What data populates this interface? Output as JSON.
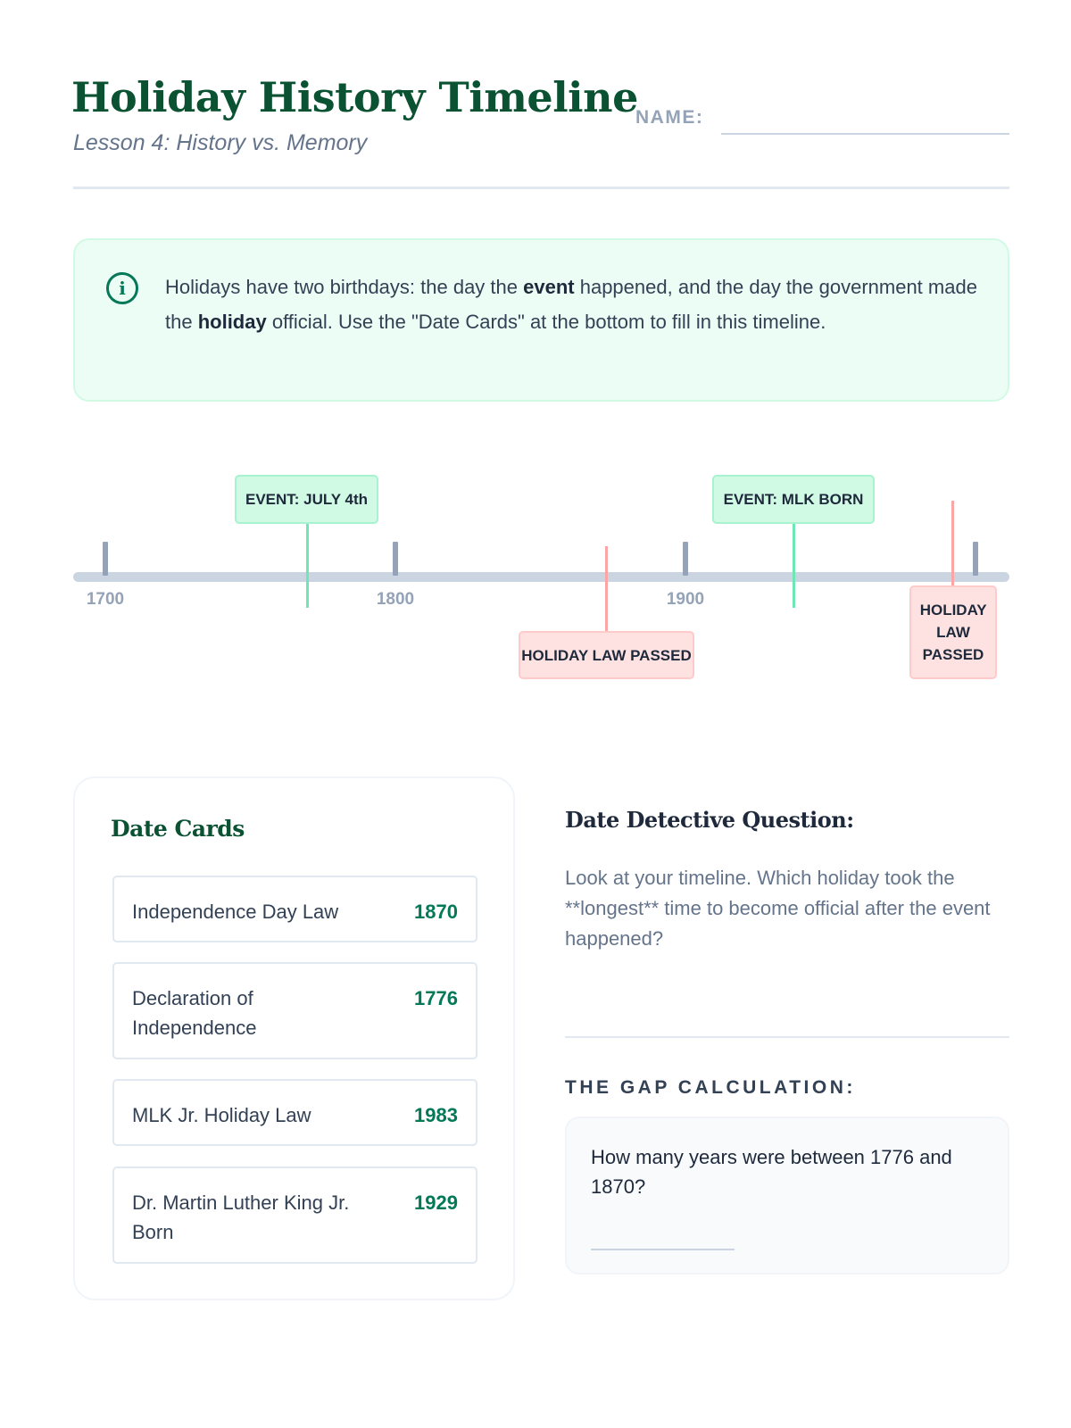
{
  "header": {
    "title": "Holiday History Timeline",
    "subtitle": "Lesson 4: History vs. Memory",
    "name_label": "NAME:"
  },
  "info": {
    "icon": "info-circle-icon",
    "text_1": "Holidays have two birthdays: the day the ",
    "bold_1": "event",
    "text_2": " happened, and the day the government made the ",
    "bold_2": "holiday",
    "text_3": " official. Use the \"Date Cards\" at the bottom to fill in this timeline."
  },
  "timeline": {
    "ticks": [
      "1700",
      "1800",
      "1900"
    ],
    "markers": [
      {
        "label": "EVENT: JULY 4th",
        "kind": "event",
        "color": "#d1fae5"
      },
      {
        "label": "EVENT: MLK BORN",
        "kind": "event",
        "color": "#d1fae5"
      },
      {
        "label": "HOLIDAY LAW PASSED",
        "kind": "law",
        "color": "#fee2e2"
      },
      {
        "label": "HOLIDAY LAW PASSED",
        "kind": "law",
        "color": "#fee2e2"
      }
    ]
  },
  "date_cards": {
    "title": "Date Cards",
    "cards": [
      {
        "label": "Independence Day Law",
        "year": "1870"
      },
      {
        "label": "Declaration of Independence",
        "year": "1776"
      },
      {
        "label": "MLK Jr. Holiday Law",
        "year": "1983"
      },
      {
        "label": "Dr. Martin Luther King Jr. Born",
        "year": "1929"
      }
    ]
  },
  "question": {
    "title": "Date Detective Question:",
    "text": "Look at your timeline. Which holiday took the **longest** time to become official after the event happened?"
  },
  "gap": {
    "label": "THE GAP CALCULATION:",
    "question": "How many years were between 1776 and 1870?"
  },
  "colors": {
    "brand_green": "#0b5233",
    "accent_green": "#047857",
    "event": "#d1fae5",
    "law": "#fee2e2"
  }
}
